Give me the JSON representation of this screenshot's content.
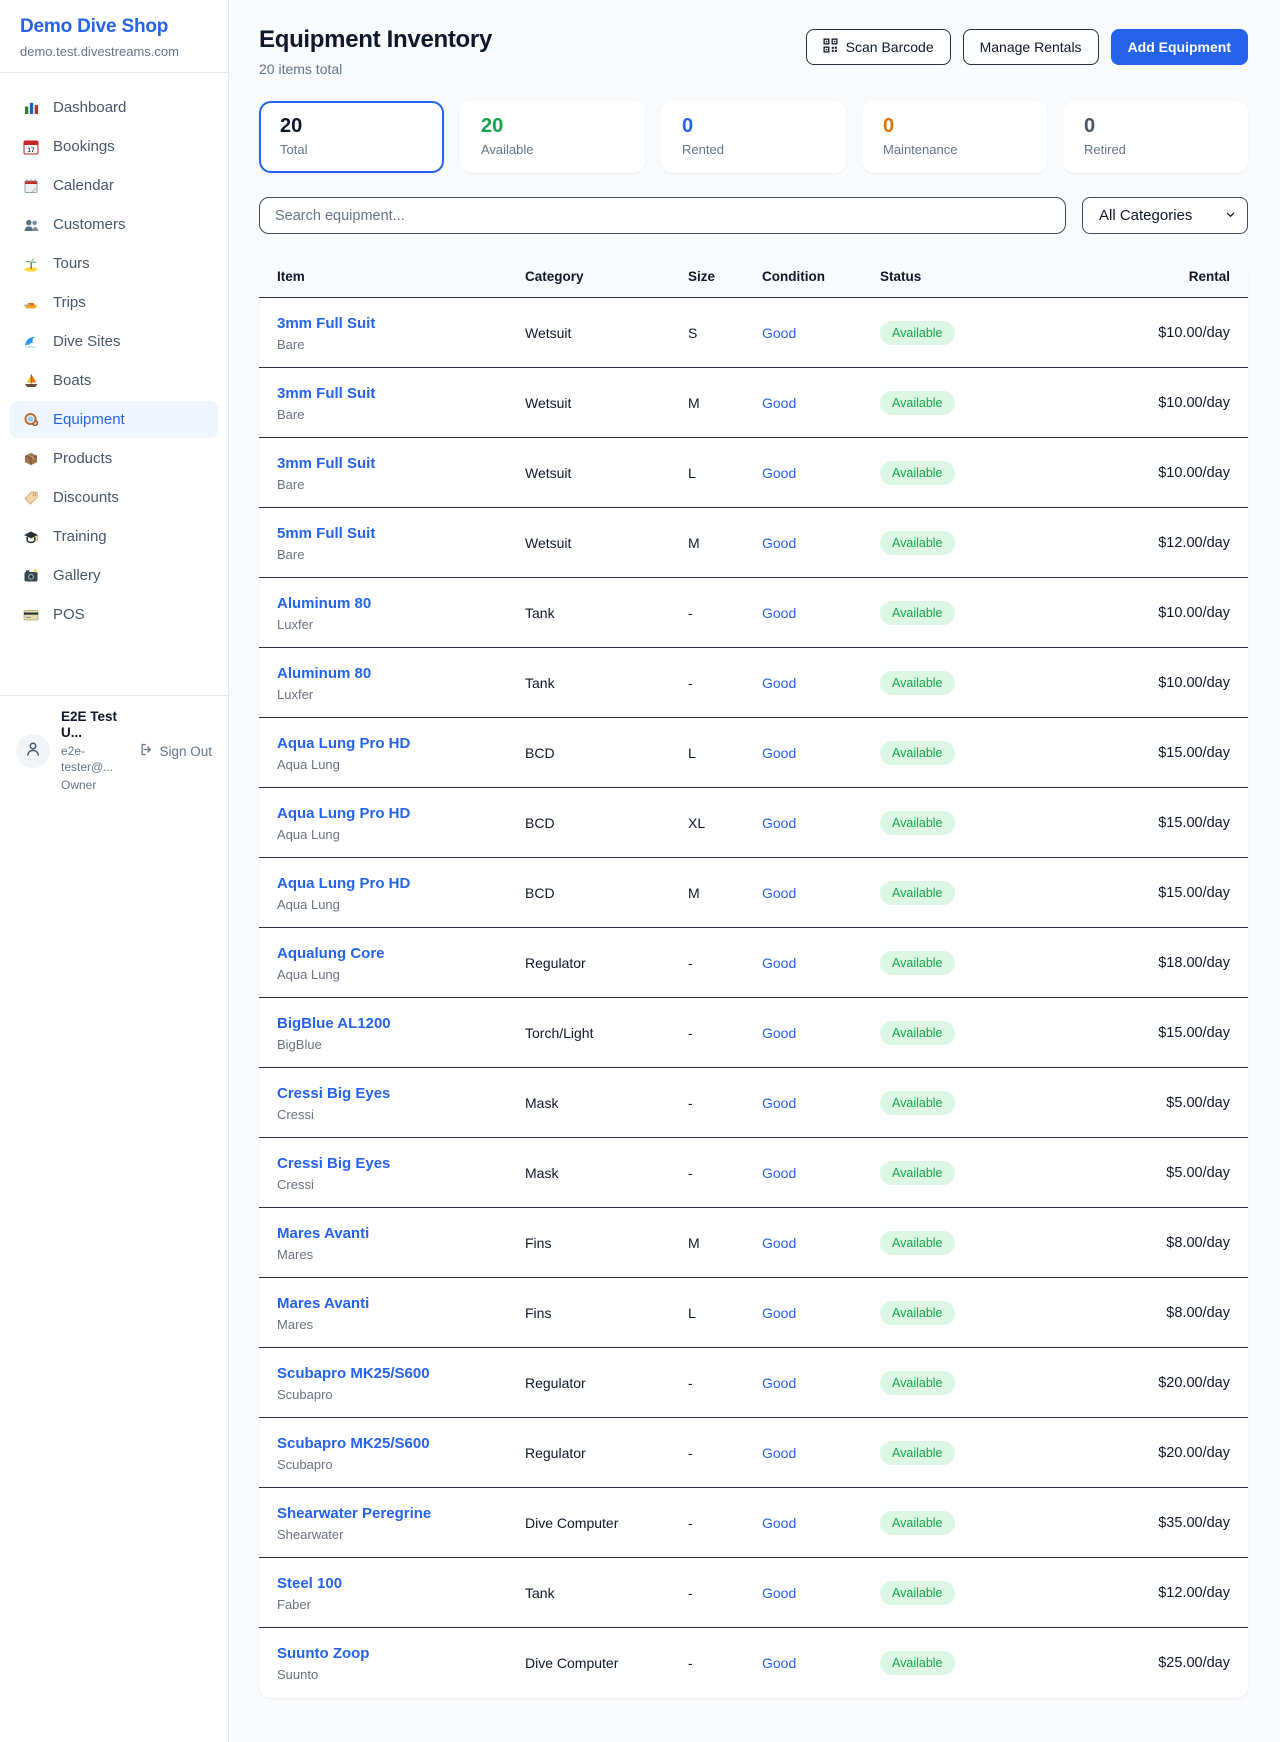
{
  "sidebar": {
    "brand": "Demo Dive Shop",
    "domain": "demo.test.divestreams.com",
    "items": [
      {
        "label": "Dashboard",
        "icon": "dashboard-icon"
      },
      {
        "label": "Bookings",
        "icon": "bookings-calendar-icon"
      },
      {
        "label": "Calendar",
        "icon": "calendar-icon"
      },
      {
        "label": "Customers",
        "icon": "customers-icon"
      },
      {
        "label": "Tours",
        "icon": "palm-island-icon"
      },
      {
        "label": "Trips",
        "icon": "speedboat-icon"
      },
      {
        "label": "Dive Sites",
        "icon": "wave-icon"
      },
      {
        "label": "Boats",
        "icon": "sailboat-icon"
      },
      {
        "label": "Equipment",
        "icon": "dive-mask-icon",
        "active": true
      },
      {
        "label": "Products",
        "icon": "package-icon"
      },
      {
        "label": "Discounts",
        "icon": "tag-icon"
      },
      {
        "label": "Training",
        "icon": "graduation-cap-icon"
      },
      {
        "label": "Gallery",
        "icon": "camera-icon"
      },
      {
        "label": "POS",
        "icon": "credit-card-icon"
      }
    ],
    "user": {
      "name": "E2E Test U...",
      "email": "e2e-tester@...",
      "role": "Owner",
      "sign_out": "Sign Out"
    }
  },
  "header": {
    "title": "Equipment Inventory",
    "subtitle": "20 items total",
    "scan_barcode_label": "Scan Barcode",
    "manage_rentals_label": "Manage Rentals",
    "add_equipment_label": "Add Equipment"
  },
  "stats": [
    {
      "value": "20",
      "label": "Total",
      "color": "#0f172a",
      "selected": true
    },
    {
      "value": "20",
      "label": "Available",
      "color": "#16a34a"
    },
    {
      "value": "0",
      "label": "Rented",
      "color": "#2563eb"
    },
    {
      "value": "0",
      "label": "Maintenance",
      "color": "#d97706"
    },
    {
      "value": "0",
      "label": "Retired",
      "color": "#4b5563"
    }
  ],
  "filters": {
    "search_placeholder": "Search equipment...",
    "category_selected": "All Categories"
  },
  "table": {
    "columns": [
      "Item",
      "Category",
      "Size",
      "Condition",
      "Status",
      "Rental"
    ],
    "rows": [
      {
        "item": "3mm Full Suit",
        "brand": "Bare",
        "category": "Wetsuit",
        "size": "S",
        "condition": "Good",
        "status": "Available",
        "rental": "$10.00/day"
      },
      {
        "item": "3mm Full Suit",
        "brand": "Bare",
        "category": "Wetsuit",
        "size": "M",
        "condition": "Good",
        "status": "Available",
        "rental": "$10.00/day"
      },
      {
        "item": "3mm Full Suit",
        "brand": "Bare",
        "category": "Wetsuit",
        "size": "L",
        "condition": "Good",
        "status": "Available",
        "rental": "$10.00/day"
      },
      {
        "item": "5mm Full Suit",
        "brand": "Bare",
        "category": "Wetsuit",
        "size": "M",
        "condition": "Good",
        "status": "Available",
        "rental": "$12.00/day"
      },
      {
        "item": "Aluminum 80",
        "brand": "Luxfer",
        "category": "Tank",
        "size": "-",
        "condition": "Good",
        "status": "Available",
        "rental": "$10.00/day"
      },
      {
        "item": "Aluminum 80",
        "brand": "Luxfer",
        "category": "Tank",
        "size": "-",
        "condition": "Good",
        "status": "Available",
        "rental": "$10.00/day"
      },
      {
        "item": "Aqua Lung Pro HD",
        "brand": "Aqua Lung",
        "category": "BCD",
        "size": "L",
        "condition": "Good",
        "status": "Available",
        "rental": "$15.00/day"
      },
      {
        "item": "Aqua Lung Pro HD",
        "brand": "Aqua Lung",
        "category": "BCD",
        "size": "XL",
        "condition": "Good",
        "status": "Available",
        "rental": "$15.00/day"
      },
      {
        "item": "Aqua Lung Pro HD",
        "brand": "Aqua Lung",
        "category": "BCD",
        "size": "M",
        "condition": "Good",
        "status": "Available",
        "rental": "$15.00/day"
      },
      {
        "item": "Aqualung Core",
        "brand": "Aqua Lung",
        "category": "Regulator",
        "size": "-",
        "condition": "Good",
        "status": "Available",
        "rental": "$18.00/day"
      },
      {
        "item": "BigBlue AL1200",
        "brand": "BigBlue",
        "category": "Torch/Light",
        "size": "-",
        "condition": "Good",
        "status": "Available",
        "rental": "$15.00/day"
      },
      {
        "item": "Cressi Big Eyes",
        "brand": "Cressi",
        "category": "Mask",
        "size": "-",
        "condition": "Good",
        "status": "Available",
        "rental": "$5.00/day"
      },
      {
        "item": "Cressi Big Eyes",
        "brand": "Cressi",
        "category": "Mask",
        "size": "-",
        "condition": "Good",
        "status": "Available",
        "rental": "$5.00/day"
      },
      {
        "item": "Mares Avanti",
        "brand": "Mares",
        "category": "Fins",
        "size": "M",
        "condition": "Good",
        "status": "Available",
        "rental": "$8.00/day"
      },
      {
        "item": "Mares Avanti",
        "brand": "Mares",
        "category": "Fins",
        "size": "L",
        "condition": "Good",
        "status": "Available",
        "rental": "$8.00/day"
      },
      {
        "item": "Scubapro MK25/S600",
        "brand": "Scubapro",
        "category": "Regulator",
        "size": "-",
        "condition": "Good",
        "status": "Available",
        "rental": "$20.00/day"
      },
      {
        "item": "Scubapro MK25/S600",
        "brand": "Scubapro",
        "category": "Regulator",
        "size": "-",
        "condition": "Good",
        "status": "Available",
        "rental": "$20.00/day"
      },
      {
        "item": "Shearwater Peregrine",
        "brand": "Shearwater",
        "category": "Dive Computer",
        "size": "-",
        "condition": "Good",
        "status": "Available",
        "rental": "$35.00/day"
      },
      {
        "item": "Steel 100",
        "brand": "Faber",
        "category": "Tank",
        "size": "-",
        "condition": "Good",
        "status": "Available",
        "rental": "$12.00/day"
      },
      {
        "item": "Suunto Zoop",
        "brand": "Suunto",
        "category": "Dive Computer",
        "size": "-",
        "condition": "Good",
        "status": "Available",
        "rental": "$25.00/day"
      }
    ]
  }
}
